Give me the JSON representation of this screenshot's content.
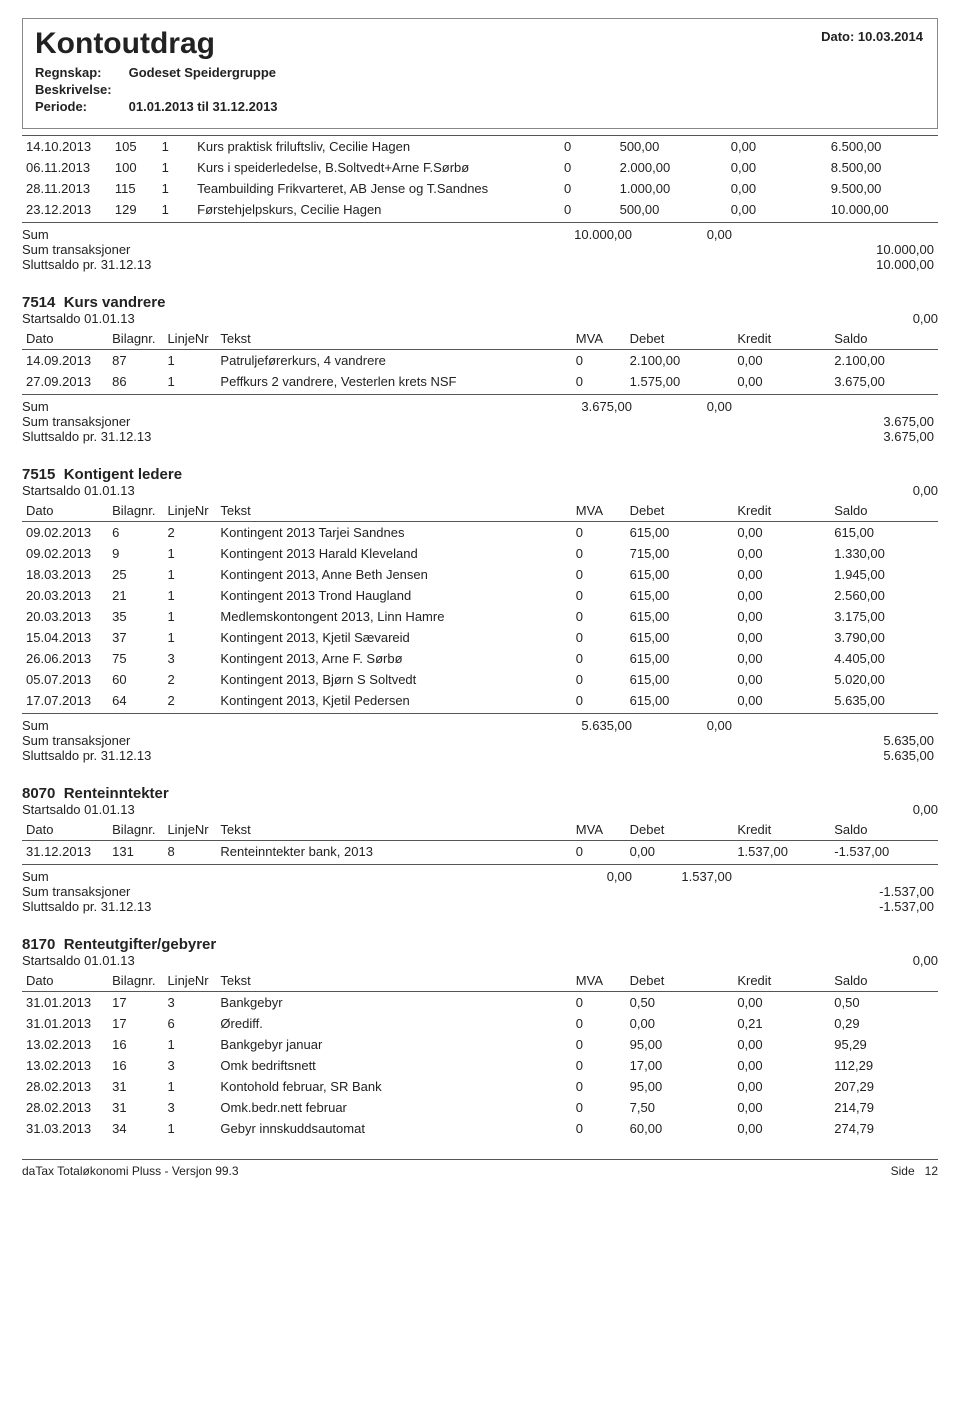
{
  "header": {
    "title": "Kontoutdrag",
    "date_label": "Dato:",
    "date": "10.03.2014",
    "regnskap_label": "Regnskap:",
    "regnskap": "Godeset Speidergruppe",
    "beskrivelse_label": "Beskrivelse:",
    "periode_label": "Periode:",
    "periode": "01.01.2013  til  31.12.2013"
  },
  "columns": {
    "dato": "Dato",
    "bilag": "Bilagnr.",
    "linje": "LinjeNr",
    "tekst": "Tekst",
    "mva": "MVA",
    "debet": "Debet",
    "kredit": "Kredit",
    "saldo": "Saldo"
  },
  "summary_labels": {
    "sum": "Sum",
    "sum_trans": "Sum transaksjoner",
    "slutt": "Sluttsaldo pr.  31.12.13",
    "start": "Startsaldo  01.01.13"
  },
  "top_rows": [
    {
      "dato": "14.10.2013",
      "bilag": "105",
      "linje": "1",
      "tekst": "Kurs praktisk friluftsliv, Cecilie Hagen",
      "mva": "0",
      "debet": "500,00",
      "kredit": "0,00",
      "saldo": "6.500,00"
    },
    {
      "dato": "06.11.2013",
      "bilag": "100",
      "linje": "1",
      "tekst": "Kurs i speiderledelse, B.Soltvedt+Arne F.Sørbø",
      "mva": "0",
      "debet": "2.000,00",
      "kredit": "0,00",
      "saldo": "8.500,00"
    },
    {
      "dato": "28.11.2013",
      "bilag": "115",
      "linje": "1",
      "tekst": "Teambuilding Frikvarteret, AB Jense og T.Sandnes",
      "mva": "0",
      "debet": "1.000,00",
      "kredit": "0,00",
      "saldo": "9.500,00"
    },
    {
      "dato": "23.12.2013",
      "bilag": "129",
      "linje": "1",
      "tekst": "Førstehjelpskurs, Cecilie Hagen",
      "mva": "0",
      "debet": "500,00",
      "kredit": "0,00",
      "saldo": "10.000,00"
    }
  ],
  "top_sum": {
    "debet": "10.000,00",
    "kredit": "0,00",
    "trans": "10.000,00",
    "slutt": "10.000,00"
  },
  "acc7514": {
    "code": "7514",
    "name": "Kurs vandrere",
    "start": "0,00",
    "rows": [
      {
        "dato": "14.09.2013",
        "bilag": "87",
        "linje": "1",
        "tekst": "Patruljeførerkurs, 4 vandrere",
        "mva": "0",
        "debet": "2.100,00",
        "kredit": "0,00",
        "saldo": "2.100,00"
      },
      {
        "dato": "27.09.2013",
        "bilag": "86",
        "linje": "1",
        "tekst": "Peffkurs 2 vandrere, Vesterlen krets NSF",
        "mva": "0",
        "debet": "1.575,00",
        "kredit": "0,00",
        "saldo": "3.675,00"
      }
    ],
    "sum": {
      "debet": "3.675,00",
      "kredit": "0,00",
      "trans": "3.675,00",
      "slutt": "3.675,00"
    }
  },
  "acc7515": {
    "code": "7515",
    "name": "Kontigent ledere",
    "start": "0,00",
    "rows": [
      {
        "dato": "09.02.2013",
        "bilag": "6",
        "linje": "2",
        "tekst": "Kontingent 2013 Tarjei Sandnes",
        "mva": "0",
        "debet": "615,00",
        "kredit": "0,00",
        "saldo": "615,00"
      },
      {
        "dato": "09.02.2013",
        "bilag": "9",
        "linje": "1",
        "tekst": "Kontingent 2013 Harald Kleveland",
        "mva": "0",
        "debet": "715,00",
        "kredit": "0,00",
        "saldo": "1.330,00"
      },
      {
        "dato": "18.03.2013",
        "bilag": "25",
        "linje": "1",
        "tekst": "Kontingent 2013, Anne Beth Jensen",
        "mva": "0",
        "debet": "615,00",
        "kredit": "0,00",
        "saldo": "1.945,00"
      },
      {
        "dato": "20.03.2013",
        "bilag": "21",
        "linje": "1",
        "tekst": "Kontingent 2013 Trond Haugland",
        "mva": "0",
        "debet": "615,00",
        "kredit": "0,00",
        "saldo": "2.560,00"
      },
      {
        "dato": "20.03.2013",
        "bilag": "35",
        "linje": "1",
        "tekst": "Medlemskontongent 2013, Linn Hamre",
        "mva": "0",
        "debet": "615,00",
        "kredit": "0,00",
        "saldo": "3.175,00"
      },
      {
        "dato": "15.04.2013",
        "bilag": "37",
        "linje": "1",
        "tekst": "Kontingent 2013, Kjetil Sævareid",
        "mva": "0",
        "debet": "615,00",
        "kredit": "0,00",
        "saldo": "3.790,00"
      },
      {
        "dato": "26.06.2013",
        "bilag": "75",
        "linje": "3",
        "tekst": "Kontingent 2013, Arne F. Sørbø",
        "mva": "0",
        "debet": "615,00",
        "kredit": "0,00",
        "saldo": "4.405,00"
      },
      {
        "dato": "05.07.2013",
        "bilag": "60",
        "linje": "2",
        "tekst": "Kontingent 2013, Bjørn S Soltvedt",
        "mva": "0",
        "debet": "615,00",
        "kredit": "0,00",
        "saldo": "5.020,00"
      },
      {
        "dato": "17.07.2013",
        "bilag": "64",
        "linje": "2",
        "tekst": "Kontingent 2013, Kjetil Pedersen",
        "mva": "0",
        "debet": "615,00",
        "kredit": "0,00",
        "saldo": "5.635,00"
      }
    ],
    "sum": {
      "debet": "5.635,00",
      "kredit": "0,00",
      "trans": "5.635,00",
      "slutt": "5.635,00"
    }
  },
  "acc8070": {
    "code": "8070",
    "name": "Renteinntekter",
    "start": "0,00",
    "rows": [
      {
        "dato": "31.12.2013",
        "bilag": "131",
        "linje": "8",
        "tekst": "Renteinntekter bank, 2013",
        "mva": "0",
        "debet": "0,00",
        "kredit": "1.537,00",
        "saldo": "-1.537,00"
      }
    ],
    "sum": {
      "debet": "0,00",
      "kredit": "1.537,00",
      "trans": "-1.537,00",
      "slutt": "-1.537,00"
    }
  },
  "acc8170": {
    "code": "8170",
    "name": "Renteutgifter/gebyrer",
    "start": "0,00",
    "rows": [
      {
        "dato": "31.01.2013",
        "bilag": "17",
        "linje": "3",
        "tekst": "Bankgebyr",
        "mva": "0",
        "debet": "0,50",
        "kredit": "0,00",
        "saldo": "0,50"
      },
      {
        "dato": "31.01.2013",
        "bilag": "17",
        "linje": "6",
        "tekst": "Ørediff.",
        "mva": "0",
        "debet": "0,00",
        "kredit": "0,21",
        "saldo": "0,29"
      },
      {
        "dato": "13.02.2013",
        "bilag": "16",
        "linje": "1",
        "tekst": "Bankgebyr januar",
        "mva": "0",
        "debet": "95,00",
        "kredit": "0,00",
        "saldo": "95,29"
      },
      {
        "dato": "13.02.2013",
        "bilag": "16",
        "linje": "3",
        "tekst": "Omk bedriftsnett",
        "mva": "0",
        "debet": "17,00",
        "kredit": "0,00",
        "saldo": "112,29"
      },
      {
        "dato": "28.02.2013",
        "bilag": "31",
        "linje": "1",
        "tekst": "Kontohold februar, SR Bank",
        "mva": "0",
        "debet": "95,00",
        "kredit": "0,00",
        "saldo": "207,29"
      },
      {
        "dato": "28.02.2013",
        "bilag": "31",
        "linje": "3",
        "tekst": "Omk.bedr.nett februar",
        "mva": "0",
        "debet": "7,50",
        "kredit": "0,00",
        "saldo": "214,79"
      },
      {
        "dato": "31.03.2013",
        "bilag": "34",
        "linje": "1",
        "tekst": "Gebyr innskuddsautomat",
        "mva": "0",
        "debet": "60,00",
        "kredit": "0,00",
        "saldo": "274,79"
      }
    ]
  },
  "footer": {
    "left": "daTax Totaløkonomi Pluss - Versjon 99.3",
    "side_label": "Side",
    "page": "12"
  }
}
